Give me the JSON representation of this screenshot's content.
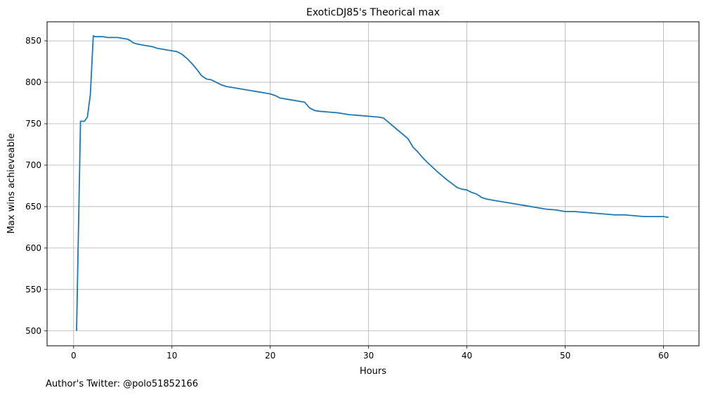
{
  "chart_data": {
    "type": "line",
    "title": "ExoticDJ85's Theorical max",
    "xlabel": "Hours",
    "ylabel": "Max wins achieveable",
    "xlim": [
      -2.7,
      63.6
    ],
    "ylim": [
      482,
      873
    ],
    "xticks": [
      0,
      10,
      20,
      30,
      40,
      50,
      60
    ],
    "yticks": [
      500,
      550,
      600,
      650,
      700,
      750,
      800,
      850
    ],
    "grid": true,
    "legend": "none",
    "line_color": "#1f77b4",
    "series": [
      {
        "x": [
          0.3,
          0.7,
          1.1,
          1.4,
          1.7,
          2.0,
          2.2,
          3.0,
          3.5,
          4.0,
          4.5,
          5.0,
          5.5,
          5.8,
          6.0,
          6.5,
          7.0,
          7.5,
          8.0,
          8.5,
          9.0,
          9.5,
          10.0,
          10.5,
          11.0,
          11.5,
          12.0,
          12.5,
          13.0,
          13.5,
          14.0,
          14.5,
          15.0,
          15.5,
          16.0,
          17.0,
          18.0,
          19.0,
          20.0,
          20.5,
          21.0,
          22.0,
          23.0,
          23.5,
          24.0,
          24.5,
          25.0,
          26.0,
          27.0,
          28.0,
          29.0,
          30.0,
          31.0,
          31.5,
          32.0,
          33.0,
          34.0,
          34.5,
          35.0,
          35.5,
          36.0,
          37.0,
          38.0,
          39.0,
          39.5,
          40.0,
          40.5,
          41.0,
          41.5,
          42.0,
          43.0,
          44.0,
          45.0,
          46.0,
          47.0,
          48.0,
          49.0,
          50.0,
          51.0,
          52.0,
          53.0,
          54.0,
          55.0,
          56.0,
          57.0,
          58.0,
          59.0,
          60.0,
          60.5
        ],
        "y": [
          500,
          753,
          753,
          758,
          785,
          856,
          855,
          855,
          854,
          854,
          854,
          853,
          852,
          850,
          848,
          846,
          845,
          844,
          843,
          841,
          840,
          839,
          838,
          837,
          834,
          829,
          823,
          816,
          808,
          804,
          803,
          800,
          797,
          795,
          794,
          792,
          790,
          788,
          786,
          784,
          781,
          779,
          777,
          776,
          769,
          766,
          765,
          764,
          763,
          761,
          760,
          759,
          758,
          757,
          752,
          742,
          732,
          722,
          716,
          709,
          703,
          692,
          682,
          673,
          671,
          670,
          667,
          665,
          661,
          659,
          657,
          655,
          653,
          651,
          649,
          647,
          646,
          644,
          644,
          643,
          642,
          641,
          640,
          640,
          639,
          638,
          638,
          638,
          637
        ]
      }
    ]
  },
  "footer": {
    "credit": "Author's Twitter: @polo51852166"
  }
}
